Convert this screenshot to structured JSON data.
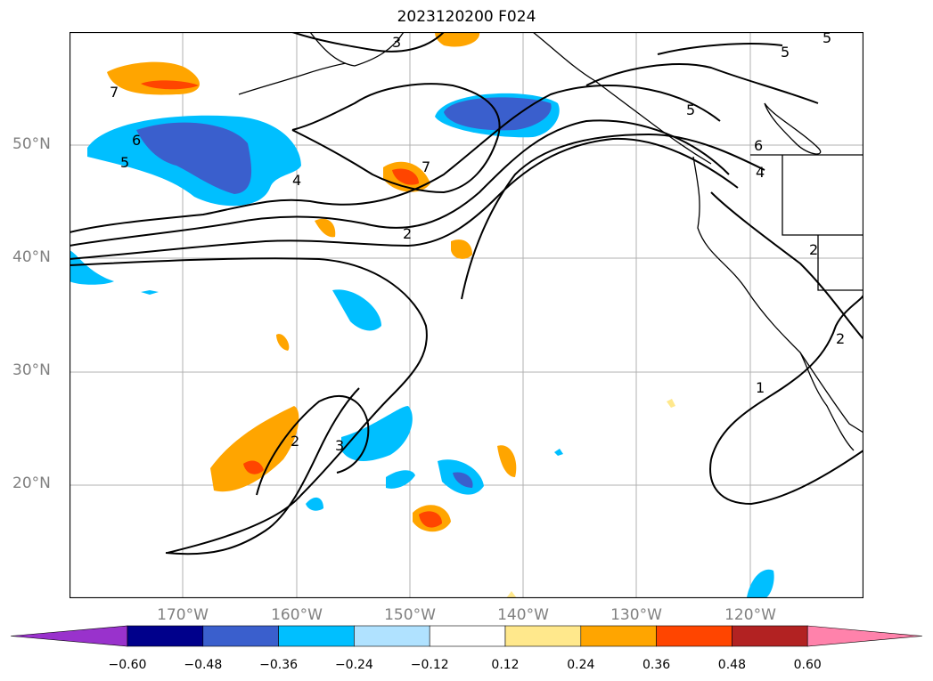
{
  "title": "2023120200 F024",
  "lat_labels": [
    "50°N",
    "40°N",
    "30°N",
    "20°N"
  ],
  "lon_labels": [
    "170°W",
    "160°W",
    "150°W",
    "140°W",
    "130°W",
    "120°W"
  ],
  "contour_labels": [
    "7",
    "6",
    "5",
    "4",
    "2",
    "7",
    "3",
    "5",
    "5",
    "5",
    "6",
    "4",
    "2",
    "1",
    "2",
    "3",
    "2"
  ],
  "colorbar": {
    "ticks": [
      "−0.60",
      "−0.48",
      "−0.36",
      "−0.24",
      "−0.12",
      "0.12",
      "0.24",
      "0.36",
      "0.48",
      "0.60"
    ],
    "colors": [
      "#9932CC",
      "#00008B",
      "#3A5FCD",
      "#00BFFF",
      "#B0E2FF",
      "#FFFFFF",
      "#FFE88C",
      "#FFA500",
      "#FF4500",
      "#B22222",
      "#FF82AB"
    ]
  }
}
